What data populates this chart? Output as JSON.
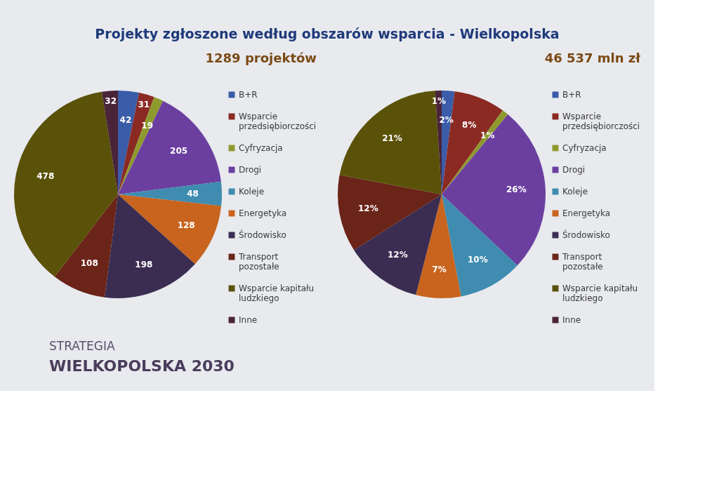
{
  "chart_data": [
    {
      "type": "other",
      "title": "Projekty zgłoszone według obszarów wsparcia - Wielkopolska",
      "annotations": [
        "STRATEGIA",
        "WIELKOPOLSKA 2030"
      ]
    },
    {
      "type": "pie",
      "title": "1289 projektów",
      "categories": [
        "B+R",
        "Wsparcie przedsiębiorczości",
        "Cyfryzacja",
        "Drogi",
        "Koleje",
        "Energetyka",
        "Środowisko",
        "Transport pozostałe",
        "Wsparcie kapitału ludzkiego",
        "Inne"
      ],
      "values": [
        42,
        31,
        19,
        205,
        48,
        128,
        198,
        108,
        478,
        32
      ],
      "colors": [
        "#3b5ca8",
        "#8a2a22",
        "#8f9a2e",
        "#6b3fa0",
        "#3f8cb0",
        "#c8641e",
        "#3b2d52",
        "#6a2418",
        "#5a5208",
        "#4a2438"
      ],
      "data_labels": true,
      "legend": "right"
    },
    {
      "type": "pie",
      "title": "46 537 mln zł",
      "categories": [
        "B+R",
        "Wsparcie przedsiębiorczości",
        "Cyfryzacja",
        "Drogi",
        "Koleje",
        "Energetyka",
        "Środowisko",
        "Transport pozostałe",
        "Wsparcie kapitału ludzkiego",
        "Inne"
      ],
      "values": [
        2,
        8,
        1,
        26,
        10,
        7,
        12,
        12,
        21,
        1
      ],
      "colors": [
        "#3b5ca8",
        "#8a2a22",
        "#8f9a2e",
        "#6b3fa0",
        "#3f8cb0",
        "#c8641e",
        "#3b2d52",
        "#6a2418",
        "#5a5208",
        "#4a2438"
      ],
      "value_labels": [
        "2%",
        "8%",
        "1%",
        "26%",
        "10%",
        "7%",
        "12%",
        "12%",
        "21%",
        "1%"
      ],
      "legend": "right"
    }
  ]
}
